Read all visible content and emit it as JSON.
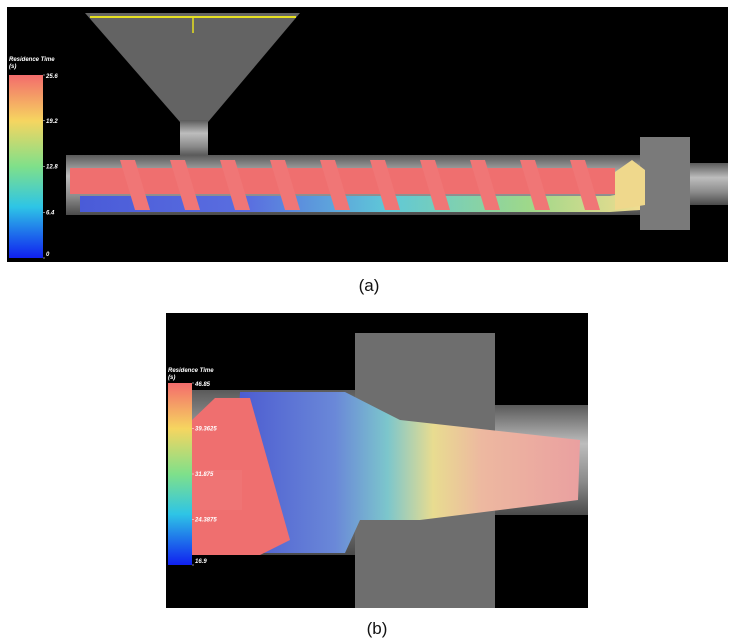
{
  "panels": [
    {
      "colorbar": {
        "title": "Residence Time",
        "unit": "(s)",
        "ticks": [
          25.6,
          19.2,
          12.8,
          6.4,
          0
        ]
      },
      "caption": "(a)"
    },
    {
      "colorbar": {
        "title": "Residence Time",
        "unit": "(s)",
        "ticks": [
          46.85,
          39.3625,
          31.875,
          24.3875,
          16.9
        ]
      },
      "caption": "(b)"
    }
  ]
}
